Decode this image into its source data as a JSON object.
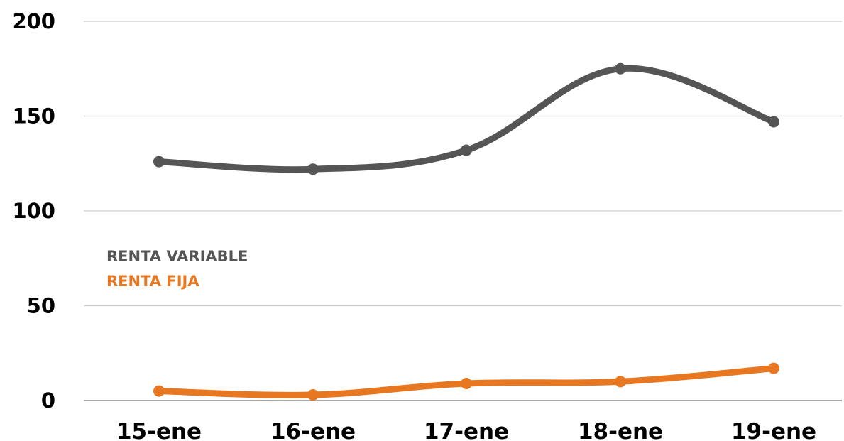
{
  "chart_data": {
    "type": "line",
    "categories": [
      "15-ene",
      "16-ene",
      "17-ene",
      "18-ene",
      "19-ene"
    ],
    "ylim": [
      0,
      200
    ],
    "yticks": [
      0,
      50,
      100,
      150,
      200
    ],
    "grid": true,
    "smooth": true,
    "legend_position": "center-left",
    "series": [
      {
        "name": "RENTA VARIABLE",
        "color": "#555555",
        "values": [
          126,
          122,
          132,
          175,
          147
        ]
      },
      {
        "name": "RENTA FIJA",
        "color": "#E87722",
        "values": [
          5,
          3,
          9,
          10,
          17
        ]
      }
    ]
  }
}
